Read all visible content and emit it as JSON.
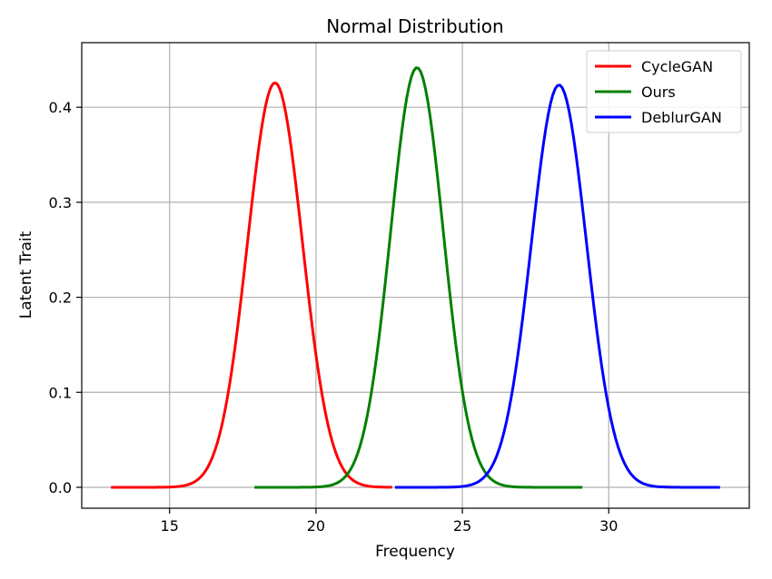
{
  "chart_data": {
    "type": "line",
    "title": "Normal Distribution",
    "xlabel": "Frequency",
    "ylabel": "Latent Trait",
    "xlim": [
      12.0,
      34.8
    ],
    "ylim": [
      -0.022,
      0.468
    ],
    "xticks": [
      15,
      20,
      25,
      30
    ],
    "yticks": [
      0.0,
      0.1,
      0.2,
      0.3,
      0.4
    ],
    "grid": true,
    "legend_position": "top-right",
    "series": [
      {
        "name": "CycleGAN",
        "color": "#ff0000",
        "mean": 18.6,
        "std": 0.937,
        "x_range": [
          13.0,
          22.6
        ]
      },
      {
        "name": "Ours",
        "color": "#008000",
        "mean": 23.45,
        "std": 0.903,
        "x_range": [
          17.9,
          29.1
        ]
      },
      {
        "name": "DeblurGAN",
        "color": "#0000ff",
        "mean": 28.3,
        "std": 0.942,
        "x_range": [
          22.7,
          33.8
        ]
      }
    ]
  }
}
